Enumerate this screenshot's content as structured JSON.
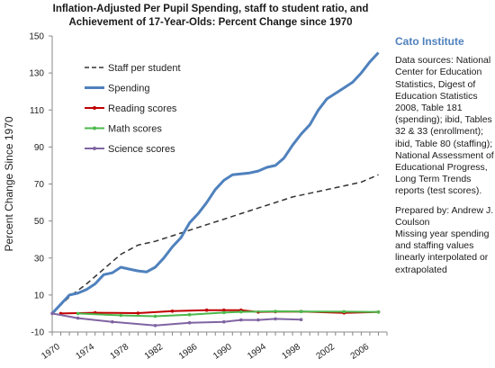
{
  "chart_data": {
    "type": "line",
    "title_lines": [
      "Inflation-Adjusted Per Pupil Spending, staff to student ratio, and",
      "Achievement of 17-Year-Olds:  Percent Change since 1970"
    ],
    "ylabel": "Percent Change Since 1970",
    "xlabel": "",
    "ylim": [
      -10,
      150
    ],
    "y_ticks": [
      -10,
      10,
      30,
      50,
      70,
      90,
      110,
      130,
      150
    ],
    "xlim": [
      1970,
      2009
    ],
    "x_ticks": [
      1970,
      1974,
      1978,
      1982,
      1986,
      1990,
      1994,
      1998,
      2002,
      2006
    ],
    "grid": false,
    "legend_placement": "top-left",
    "series": [
      {
        "name": "Staff per student",
        "color": "#333333",
        "style": "dashed",
        "x": [
          1970,
          1972,
          1974,
          1976,
          1978,
          1980,
          1982,
          1984,
          1986,
          1988,
          1990,
          1992,
          1994,
          1996,
          1998,
          2000,
          2002,
          2004,
          2006,
          2008
        ],
        "y": [
          0,
          9,
          16,
          24,
          32,
          37,
          39,
          42,
          45,
          48,
          51,
          54,
          57,
          60,
          63,
          65,
          67,
          69,
          71,
          75
        ]
      },
      {
        "name": "Spending",
        "color": "#4f81bd",
        "style": "solid",
        "x": [
          1970,
          1971,
          1972,
          1973,
          1974,
          1975,
          1976,
          1977,
          1978,
          1979,
          1980,
          1981,
          1982,
          1983,
          1984,
          1985,
          1986,
          1987,
          1988,
          1989,
          1990,
          1991,
          1992,
          1993,
          1994,
          1995,
          1996,
          1997,
          1998,
          1999,
          2000,
          2001,
          2002,
          2003,
          2004,
          2005,
          2006,
          2007,
          2008
        ],
        "y": [
          0,
          5,
          10,
          11,
          13,
          16,
          21,
          22,
          25,
          24,
          23,
          22.5,
          25,
          30,
          36,
          41,
          49,
          54,
          60,
          67,
          72,
          75,
          75.5,
          76,
          77,
          79,
          80,
          84,
          91,
          97,
          102,
          110,
          116,
          119,
          122,
          125,
          130,
          136,
          141
        ]
      },
      {
        "name": "Reading scores",
        "color": "#c00000",
        "style": "solid",
        "x": [
          1971,
          1975,
          1980,
          1984,
          1988,
          1990,
          1992,
          1994,
          1996,
          1999,
          2004,
          2008
        ],
        "y": [
          0,
          0.4,
          0.2,
          1.3,
          1.8,
          1.8,
          1.8,
          0.8,
          1.0,
          1.1,
          0.3,
          0.8
        ]
      },
      {
        "name": "Math scores",
        "color": "#4cb84c",
        "style": "solid",
        "x": [
          1973,
          1978,
          1982,
          1986,
          1990,
          1992,
          1996,
          1999,
          2004,
          2008
        ],
        "y": [
          0,
          -1,
          -1.5,
          -0.6,
          0.5,
          0.9,
          1.2,
          1.1,
          1.0,
          0.8
        ]
      },
      {
        "name": "Science scores",
        "color": "#8064a2",
        "style": "solid",
        "x": [
          1970,
          1973,
          1977,
          1982,
          1986,
          1990,
          1992,
          1994,
          1996,
          1999
        ],
        "y": [
          0,
          -2.5,
          -4.5,
          -6.5,
          -5,
          -4.5,
          -3.5,
          -3.5,
          -2.9,
          -3.3
        ]
      }
    ]
  },
  "side_panel": {
    "org": "Cato Institute",
    "sources_text": "Data sources: National Center for Education Statistics, Digest of Education Statistics 2008, Table 181 (spending); ibid, Tables 32 & 33 (enrollment); ibid, Table 80 (staffing); National Assessment of Educational Progress, Long Term Trends reports (test scores).",
    "prepared_text": "Prepared by: Andrew J. Coulson",
    "note_text": "Missing year spending and staffing values linearly interpolated or extrapolated"
  }
}
